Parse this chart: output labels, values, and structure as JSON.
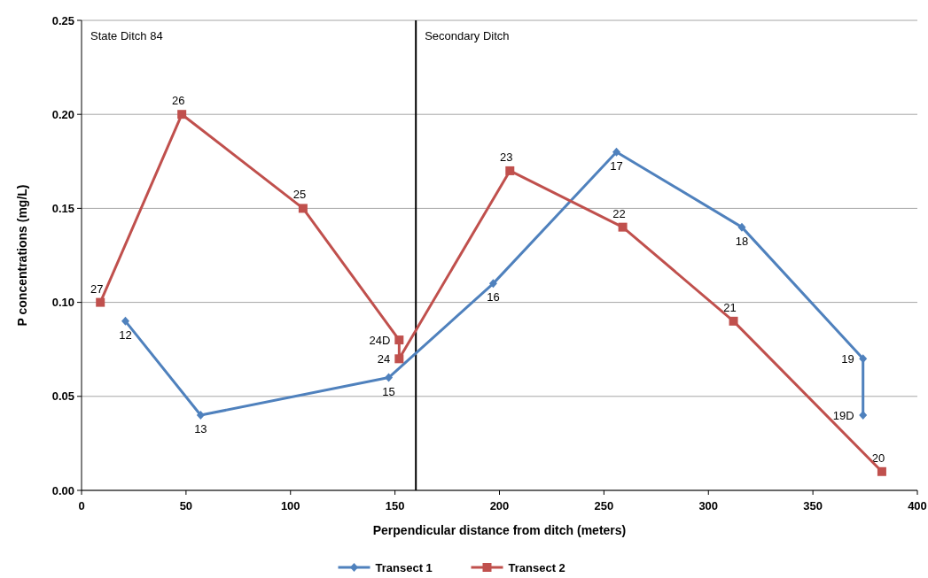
{
  "chart_data": {
    "type": "line",
    "xlabel": "Perpendicular distance from ditch (meters)",
    "ylabel": "P concentrations (mg/L)",
    "xlim": [
      0,
      400
    ],
    "xticks": [
      0,
      50,
      100,
      150,
      200,
      250,
      300,
      350,
      400
    ],
    "ylim": [
      0,
      0.25
    ],
    "yticks": [
      {
        "value": 0,
        "label": "0.00"
      },
      {
        "value": 0.05,
        "label": "0.05"
      },
      {
        "value": 0.1,
        "label": "0.10"
      },
      {
        "value": 0.15,
        "label": "0.15"
      },
      {
        "value": 0.2,
        "label": "0.20"
      },
      {
        "value": 0.25,
        "label": "0.25"
      }
    ],
    "grid": "y",
    "legend": "bottom",
    "ref_lines": [
      {
        "axis": "x",
        "value": 160,
        "color": "#000000"
      }
    ],
    "annotations": [
      "State Ditch 84",
      "Secondary Ditch",
      {
        "text": "12",
        "x": 21,
        "y": 0.09
      },
      {
        "text": "13",
        "x": 57,
        "y": 0.04
      },
      {
        "text": "15",
        "x": 147,
        "y": 0.06
      },
      {
        "text": "16",
        "x": 197,
        "y": 0.11
      },
      {
        "text": "17",
        "x": 256,
        "y": 0.18
      },
      {
        "text": "18",
        "x": 316,
        "y": 0.14
      },
      {
        "text": "19",
        "x": 374,
        "y": 0.07
      },
      {
        "text": "19D",
        "x": 374,
        "y": 0.04
      },
      {
        "text": "27",
        "x": 9,
        "y": 0.1
      },
      {
        "text": "26",
        "x": 48,
        "y": 0.2
      },
      {
        "text": "25",
        "x": 106,
        "y": 0.15
      },
      {
        "text": "24D",
        "x": 152,
        "y": 0.08
      },
      {
        "text": "24",
        "x": 152,
        "y": 0.07
      },
      {
        "text": "23",
        "x": 205,
        "y": 0.17
      },
      {
        "text": "22",
        "x": 259,
        "y": 0.14
      },
      {
        "text": "21",
        "x": 312,
        "y": 0.09
      },
      {
        "text": "20",
        "x": 383,
        "y": 0.01
      }
    ],
    "series": [
      {
        "name": "Transect 1",
        "color": "#4f81bd",
        "marker": "diamond",
        "x": [
          21,
          57,
          147,
          197,
          256,
          316,
          374,
          374
        ],
        "values": [
          0.09,
          0.04,
          0.06,
          0.11,
          0.18,
          0.14,
          0.07,
          0.04
        ]
      },
      {
        "name": "Transect 2",
        "color": "#c0504d",
        "marker": "square",
        "x": [
          9,
          48,
          106,
          152,
          152,
          205,
          259,
          312,
          383
        ],
        "values": [
          0.1,
          0.2,
          0.15,
          0.08,
          0.07,
          0.17,
          0.14,
          0.09,
          0.01
        ]
      }
    ]
  }
}
